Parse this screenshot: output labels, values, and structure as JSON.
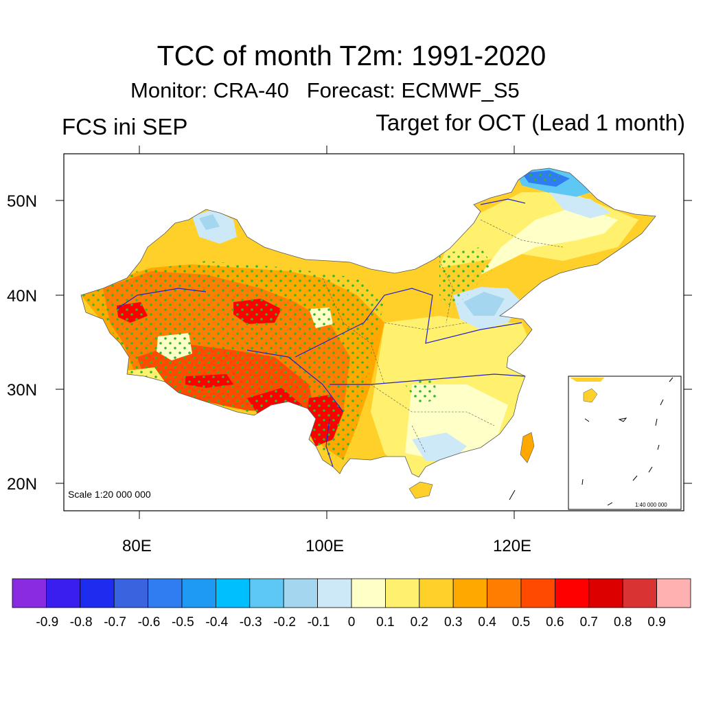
{
  "title": "TCC of month T2m: 1991-2020",
  "subtitle": "Monitor: CRA-40   Forecast: ECMWF_S5",
  "left_label": "FCS ini SEP",
  "right_label": "Target for OCT (Lead 1 month)",
  "map": {
    "scale_label": "Scale 1:20 000 000",
    "inset_scale_label": "1:40 000 000",
    "lat_ticks": [
      "50N",
      "40N",
      "30N",
      "20N"
    ],
    "lon_ticks": [
      "80E",
      "100E",
      "120E"
    ],
    "colors": {
      "background": "#ffffff",
      "stipple": "#2db82d",
      "river": "#2222cc",
      "border": "#555555"
    }
  },
  "colorbar": {
    "labels": [
      "-0.9",
      "-0.8",
      "-0.7",
      "-0.6",
      "-0.5",
      "-0.4",
      "-0.3",
      "-0.2",
      "-0.1",
      "0",
      "0.1",
      "0.2",
      "0.3",
      "0.4",
      "0.5",
      "0.6",
      "0.7",
      "0.8",
      "0.9"
    ],
    "colors": [
      "#8a2be2",
      "#3a1ef0",
      "#1e2cf0",
      "#3a63e0",
      "#2f7df0",
      "#1e9af5",
      "#00bfff",
      "#5ec8f5",
      "#a4d6f0",
      "#cde9f7",
      "#ffffc8",
      "#fff06e",
      "#ffd02a",
      "#ffa800",
      "#ff7d00",
      "#ff4a00",
      "#ff0000",
      "#dd0000",
      "#d93333",
      "#ffb0b0"
    ]
  }
}
